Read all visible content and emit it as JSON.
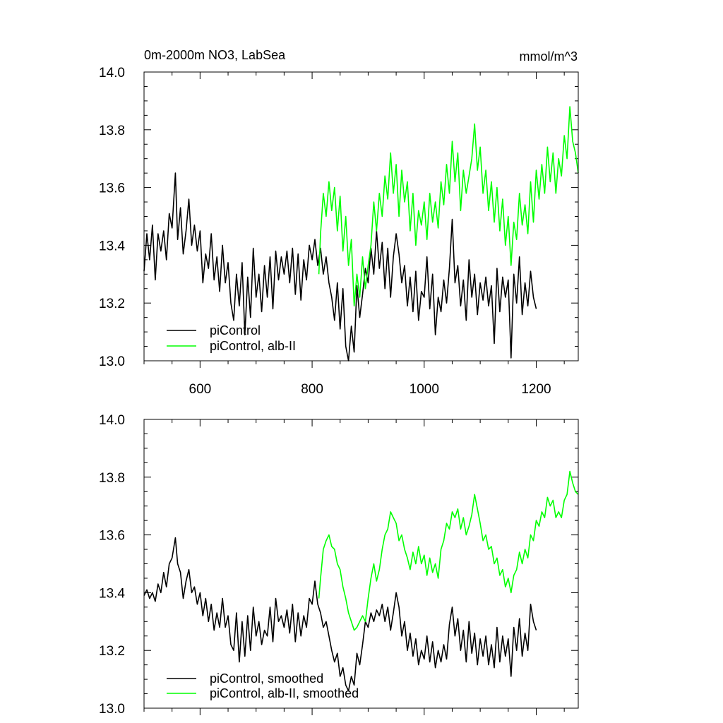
{
  "colors": {
    "black": "#000000",
    "green": "#00ff00",
    "background": "#ffffff"
  },
  "chart_data": [
    {
      "type": "line",
      "panel": "top",
      "title": "0m-2000m NO3, LabSea",
      "units": "mmol/m^3",
      "xlim": [
        500,
        1275
      ],
      "ylim": [
        13.0,
        14.0
      ],
      "xticks": [
        600,
        800,
        1000,
        1200
      ],
      "xtick_labels": [
        "600",
        "800",
        "1000",
        "1200"
      ],
      "yticks": [
        13.0,
        13.2,
        13.4,
        13.6,
        13.8,
        14.0
      ],
      "ytick_labels": [
        "13.0",
        "13.2",
        "13.4",
        "13.6",
        "13.8",
        "14.0"
      ],
      "legend_position": "bottom-left",
      "series": [
        {
          "name": "piControl",
          "color": "#000000",
          "x": [
            500,
            505,
            510,
            515,
            520,
            525,
            530,
            535,
            540,
            545,
            550,
            556,
            560,
            565,
            570,
            575,
            580,
            585,
            590,
            595,
            600,
            605,
            610,
            615,
            620,
            625,
            630,
            635,
            640,
            645,
            650,
            655,
            660,
            665,
            670,
            675,
            680,
            685,
            690,
            695,
            700,
            705,
            710,
            715,
            720,
            725,
            730,
            735,
            740,
            745,
            750,
            755,
            760,
            765,
            770,
            775,
            780,
            785,
            790,
            795,
            800,
            805,
            810,
            815,
            820,
            825,
            830,
            835,
            840,
            845,
            850,
            855,
            860,
            865,
            870,
            875,
            880,
            885,
            890,
            895,
            900,
            905,
            910,
            915,
            920,
            925,
            930,
            935,
            940,
            945,
            950,
            955,
            960,
            965,
            970,
            975,
            980,
            985,
            990,
            995,
            1000,
            1005,
            1010,
            1015,
            1020,
            1025,
            1030,
            1035,
            1040,
            1045,
            1050,
            1055,
            1060,
            1065,
            1070,
            1075,
            1080,
            1085,
            1090,
            1095,
            1100,
            1105,
            1110,
            1115,
            1120,
            1125,
            1130,
            1135,
            1140,
            1145,
            1150,
            1155,
            1160,
            1165,
            1170,
            1175,
            1180,
            1185,
            1190,
            1195,
            1200
          ],
          "y": [
            13.31,
            13.44,
            13.35,
            13.47,
            13.28,
            13.44,
            13.38,
            13.45,
            13.35,
            13.51,
            13.46,
            13.65,
            13.42,
            13.53,
            13.37,
            13.45,
            13.56,
            13.4,
            13.47,
            13.38,
            13.45,
            13.27,
            13.37,
            13.32,
            13.44,
            13.28,
            13.36,
            13.24,
            13.4,
            13.27,
            13.34,
            13.2,
            13.14,
            13.3,
            13.19,
            13.34,
            13.09,
            13.29,
            13.15,
            13.39,
            13.22,
            13.3,
            13.17,
            13.33,
            13.22,
            13.36,
            13.18,
            13.38,
            13.28,
            13.36,
            13.3,
            13.38,
            13.27,
            13.39,
            13.23,
            13.37,
            13.21,
            13.35,
            13.28,
            13.4,
            13.35,
            13.42,
            13.33,
            13.39,
            13.3,
            13.36,
            13.27,
            13.22,
            13.14,
            13.27,
            13.11,
            13.25,
            13.05,
            13.0,
            13.12,
            13.03,
            13.26,
            13.15,
            13.23,
            13.32,
            13.27,
            13.39,
            13.3,
            13.45,
            13.32,
            13.41,
            13.25,
            13.39,
            13.22,
            13.36,
            13.44,
            13.37,
            13.27,
            13.33,
            13.19,
            13.29,
            13.17,
            13.31,
            13.14,
            13.24,
            13.22,
            13.36,
            13.18,
            13.3,
            13.09,
            13.22,
            13.17,
            13.28,
            13.2,
            13.32,
            13.49,
            13.27,
            13.33,
            13.19,
            13.28,
            13.14,
            13.35,
            13.22,
            13.3,
            13.16,
            13.27,
            13.21,
            13.29,
            13.19,
            13.26,
            13.06,
            13.32,
            13.17,
            13.29,
            13.22,
            13.28,
            13.01,
            13.3,
            13.2,
            13.36,
            13.16,
            13.27,
            13.19,
            13.31,
            13.22,
            13.18
          ]
        },
        {
          "name": "piControl, alb-II",
          "color": "#00ff00",
          "x": [
            812,
            815,
            820,
            825,
            830,
            835,
            840,
            845,
            850,
            855,
            860,
            865,
            870,
            875,
            880,
            885,
            890,
            895,
            900,
            905,
            910,
            915,
            920,
            925,
            930,
            935,
            940,
            945,
            950,
            955,
            960,
            965,
            970,
            975,
            980,
            985,
            990,
            995,
            1000,
            1005,
            1010,
            1015,
            1020,
            1025,
            1030,
            1035,
            1040,
            1045,
            1050,
            1055,
            1060,
            1065,
            1070,
            1075,
            1080,
            1085,
            1090,
            1095,
            1100,
            1105,
            1110,
            1115,
            1120,
            1125,
            1130,
            1135,
            1140,
            1145,
            1150,
            1155,
            1160,
            1165,
            1170,
            1175,
            1180,
            1185,
            1190,
            1195,
            1200,
            1205,
            1210,
            1215,
            1220,
            1225,
            1230,
            1235,
            1240,
            1245,
            1250,
            1255,
            1260,
            1265,
            1270,
            1275
          ],
          "y": [
            13.3,
            13.44,
            13.58,
            13.5,
            13.62,
            13.52,
            13.6,
            13.45,
            13.57,
            13.38,
            13.5,
            13.33,
            13.42,
            13.19,
            13.3,
            13.22,
            13.36,
            13.25,
            13.33,
            13.4,
            13.55,
            13.45,
            13.58,
            13.5,
            13.64,
            13.56,
            13.72,
            13.58,
            13.68,
            13.5,
            13.66,
            13.55,
            13.62,
            13.45,
            13.58,
            13.4,
            13.52,
            13.47,
            13.55,
            13.42,
            13.58,
            13.48,
            13.55,
            13.46,
            13.62,
            13.54,
            13.68,
            13.58,
            13.76,
            13.62,
            13.72,
            13.52,
            13.66,
            13.58,
            13.64,
            13.7,
            13.82,
            13.66,
            13.74,
            13.58,
            13.66,
            13.52,
            13.62,
            13.48,
            13.6,
            13.45,
            13.56,
            13.4,
            13.5,
            13.33,
            13.48,
            13.42,
            13.58,
            13.47,
            13.54,
            13.44,
            13.62,
            13.48,
            13.66,
            13.56,
            13.68,
            13.58,
            13.74,
            13.62,
            13.72,
            13.58,
            13.7,
            13.64,
            13.78,
            13.7,
            13.88,
            13.76,
            13.72,
            13.65
          ]
        }
      ]
    },
    {
      "type": "line",
      "panel": "bottom",
      "xlim": [
        500,
        1275
      ],
      "ylim": [
        13.0,
        14.0
      ],
      "xticks": [
        600,
        800,
        1000,
        1200
      ],
      "yticks": [
        13.0,
        13.2,
        13.4,
        13.6,
        13.8,
        14.0
      ],
      "ytick_labels": [
        "13.0",
        "13.2",
        "13.4",
        "13.6",
        "13.8",
        "14.0"
      ],
      "legend_position": "bottom-left",
      "series": [
        {
          "name": "piControl, smoothed",
          "color": "#000000",
          "x": [
            500,
            505,
            510,
            515,
            520,
            525,
            530,
            535,
            540,
            545,
            550,
            556,
            560,
            565,
            570,
            575,
            580,
            585,
            590,
            595,
            600,
            605,
            610,
            615,
            620,
            625,
            630,
            635,
            640,
            645,
            650,
            655,
            660,
            665,
            670,
            675,
            680,
            685,
            690,
            695,
            700,
            705,
            710,
            715,
            720,
            725,
            730,
            735,
            740,
            745,
            750,
            755,
            760,
            765,
            770,
            775,
            780,
            785,
            790,
            795,
            800,
            805,
            810,
            815,
            820,
            825,
            830,
            835,
            840,
            845,
            850,
            855,
            860,
            865,
            870,
            875,
            880,
            885,
            890,
            895,
            900,
            905,
            910,
            915,
            920,
            925,
            930,
            935,
            940,
            945,
            950,
            955,
            960,
            965,
            970,
            975,
            980,
            985,
            990,
            995,
            1000,
            1005,
            1010,
            1015,
            1020,
            1025,
            1030,
            1035,
            1040,
            1045,
            1050,
            1055,
            1060,
            1065,
            1070,
            1075,
            1080,
            1085,
            1090,
            1095,
            1100,
            1105,
            1110,
            1115,
            1120,
            1125,
            1130,
            1135,
            1140,
            1145,
            1150,
            1155,
            1160,
            1165,
            1170,
            1175,
            1180,
            1185,
            1190,
            1195,
            1200
          ],
          "y": [
            13.39,
            13.41,
            13.38,
            13.4,
            13.37,
            13.43,
            13.4,
            13.47,
            13.42,
            13.5,
            13.52,
            13.59,
            13.5,
            13.47,
            13.38,
            13.44,
            13.48,
            13.4,
            13.42,
            13.36,
            13.4,
            13.32,
            13.38,
            13.3,
            13.36,
            13.27,
            13.33,
            13.28,
            13.38,
            13.28,
            13.32,
            13.22,
            13.2,
            13.33,
            13.16,
            13.3,
            13.18,
            13.32,
            13.2,
            13.35,
            13.25,
            13.3,
            13.22,
            13.27,
            13.25,
            13.35,
            13.23,
            13.38,
            13.3,
            13.32,
            13.28,
            13.34,
            13.26,
            13.36,
            13.23,
            13.33,
            13.25,
            13.32,
            13.28,
            13.38,
            13.36,
            13.44,
            13.36,
            13.33,
            13.28,
            13.3,
            13.25,
            13.2,
            13.16,
            13.19,
            13.11,
            13.14,
            13.08,
            13.06,
            13.11,
            13.08,
            13.19,
            13.15,
            13.22,
            13.3,
            13.28,
            13.33,
            13.3,
            13.34,
            13.32,
            13.36,
            13.3,
            13.35,
            13.27,
            13.33,
            13.4,
            13.35,
            13.25,
            13.3,
            13.2,
            13.26,
            13.18,
            13.24,
            13.15,
            13.2,
            13.17,
            13.25,
            13.16,
            13.23,
            13.14,
            13.2,
            13.16,
            13.22,
            13.17,
            13.29,
            13.35,
            13.25,
            13.31,
            13.2,
            13.27,
            13.16,
            13.3,
            13.19,
            13.26,
            13.15,
            13.24,
            13.18,
            13.25,
            13.15,
            13.22,
            13.14,
            13.28,
            13.16,
            13.25,
            13.18,
            13.24,
            13.11,
            13.28,
            13.2,
            13.31,
            13.18,
            13.26,
            13.2,
            13.36,
            13.3,
            13.27
          ]
        },
        {
          "name": "piControl, alb-II, smoothed",
          "color": "#00ff00",
          "x": [
            812,
            815,
            820,
            825,
            830,
            835,
            840,
            845,
            850,
            855,
            860,
            865,
            870,
            875,
            880,
            885,
            890,
            895,
            900,
            905,
            910,
            915,
            920,
            925,
            930,
            935,
            940,
            945,
            950,
            955,
            960,
            965,
            970,
            975,
            980,
            985,
            990,
            995,
            1000,
            1005,
            1010,
            1015,
            1020,
            1025,
            1030,
            1035,
            1040,
            1045,
            1050,
            1055,
            1060,
            1065,
            1070,
            1075,
            1080,
            1085,
            1090,
            1095,
            1100,
            1105,
            1110,
            1115,
            1120,
            1125,
            1130,
            1135,
            1140,
            1145,
            1150,
            1155,
            1160,
            1165,
            1170,
            1175,
            1180,
            1185,
            1190,
            1195,
            1200,
            1205,
            1210,
            1215,
            1220,
            1225,
            1230,
            1235,
            1240,
            1245,
            1250,
            1255,
            1260,
            1265,
            1270,
            1275
          ],
          "y": [
            13.38,
            13.45,
            13.55,
            13.58,
            13.6,
            13.56,
            13.55,
            13.5,
            13.48,
            13.42,
            13.38,
            13.33,
            13.3,
            13.27,
            13.28,
            13.3,
            13.32,
            13.3,
            13.38,
            13.45,
            13.5,
            13.44,
            13.48,
            13.55,
            13.6,
            13.62,
            13.68,
            13.66,
            13.64,
            13.58,
            13.6,
            13.55,
            13.52,
            13.48,
            13.54,
            13.5,
            13.56,
            13.5,
            13.53,
            13.46,
            13.52,
            13.47,
            13.5,
            13.45,
            13.55,
            13.58,
            13.64,
            13.62,
            13.68,
            13.66,
            13.69,
            13.62,
            13.66,
            13.6,
            13.63,
            13.67,
            13.74,
            13.69,
            13.64,
            13.58,
            13.6,
            13.55,
            13.56,
            13.5,
            13.52,
            13.46,
            13.48,
            13.42,
            13.45,
            13.4,
            13.46,
            13.48,
            13.54,
            13.5,
            13.55,
            13.52,
            13.6,
            13.58,
            13.65,
            13.63,
            13.68,
            13.66,
            13.73,
            13.7,
            13.72,
            13.66,
            13.68,
            13.66,
            13.72,
            13.74,
            13.82,
            13.78,
            13.75,
            13.74
          ]
        }
      ]
    }
  ]
}
